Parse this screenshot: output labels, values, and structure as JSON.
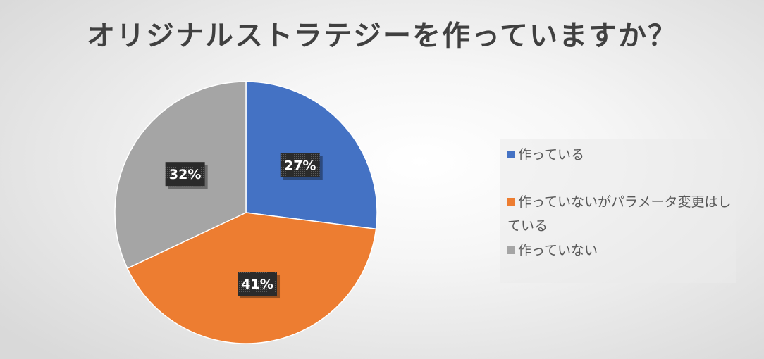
{
  "chart_data": {
    "type": "pie",
    "title": "オリジナルストラテジーを作っていますか？",
    "categories": [
      "作っている",
      "作っていないがパラメータ変更はしている",
      "作っていない"
    ],
    "values": [
      27,
      41,
      32
    ],
    "data_labels": [
      "27%",
      "41%",
      "32%"
    ],
    "colors": [
      "#4472c4",
      "#ed7d31",
      "#a5a5a5"
    ],
    "legend_position": "right"
  },
  "legend": {
    "items": [
      {
        "label": "作っている",
        "color": "#4472c4"
      },
      {
        "label": "作っていないがパラメータ変更はしている",
        "color": "#ed7d31"
      },
      {
        "label": "作っていない",
        "color": "#a5a5a5"
      }
    ]
  }
}
